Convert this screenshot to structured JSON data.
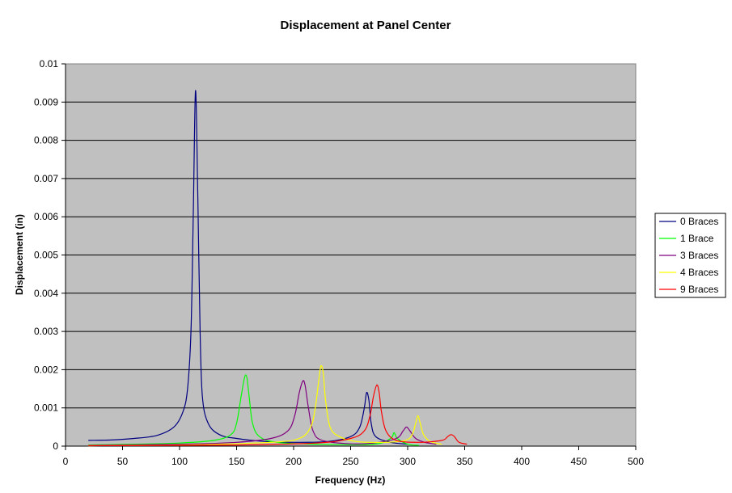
{
  "chart_data": {
    "type": "line",
    "title": "Displacement at Panel Center",
    "xlabel": "Frequency (Hz)",
    "ylabel": "Displacement (in)",
    "xlim": [
      0,
      500
    ],
    "ylim": [
      0,
      0.01
    ],
    "x_ticks": [
      "0",
      "50",
      "100",
      "150",
      "200",
      "250",
      "300",
      "350",
      "400",
      "450",
      "500"
    ],
    "y_ticks": [
      "0",
      "0.001",
      "0.002",
      "0.003",
      "0.004",
      "0.005",
      "0.006",
      "0.007",
      "0.008",
      "0.009",
      "0.01"
    ],
    "grid": "horizontal",
    "plot_background": "#c0c0c0",
    "legend_position": "right",
    "series": [
      {
        "name": "0 Braces",
        "color": "#000080",
        "points": [
          [
            20,
            0.00015
          ],
          [
            40,
            0.00016
          ],
          [
            60,
            0.0002
          ],
          [
            80,
            0.00028
          ],
          [
            95,
            0.0005
          ],
          [
            103,
            0.0009
          ],
          [
            107,
            0.0015
          ],
          [
            110,
            0.003
          ],
          [
            112,
            0.006
          ],
          [
            114,
            0.0093
          ],
          [
            116,
            0.0065
          ],
          [
            118,
            0.003
          ],
          [
            120,
            0.0013
          ],
          [
            125,
            0.0006
          ],
          [
            135,
            0.0003
          ],
          [
            150,
            0.0002
          ],
          [
            175,
            0.00012
          ],
          [
            200,
            0.0001
          ],
          [
            230,
            0.00012
          ],
          [
            250,
            0.00025
          ],
          [
            258,
            0.0005
          ],
          [
            262,
            0.001
          ],
          [
            264,
            0.0014
          ],
          [
            266,
            0.0012
          ],
          [
            268,
            0.0006
          ],
          [
            272,
            0.00025
          ],
          [
            285,
            0.0001
          ],
          [
            300,
            5e-05
          ]
        ]
      },
      {
        "name": "1 Brace",
        "color": "#00ff00",
        "points": [
          [
            20,
            3e-05
          ],
          [
            60,
            5e-05
          ],
          [
            100,
            8e-05
          ],
          [
            130,
            0.00015
          ],
          [
            145,
            0.0003
          ],
          [
            150,
            0.0006
          ],
          [
            154,
            0.0013
          ],
          [
            157,
            0.0018
          ],
          [
            159,
            0.0018
          ],
          [
            161,
            0.0013
          ],
          [
            164,
            0.0006
          ],
          [
            170,
            0.00025
          ],
          [
            185,
            0.0001
          ],
          [
            220,
            5e-05
          ],
          [
            270,
            5e-05
          ],
          [
            285,
            0.0002
          ],
          [
            288,
            0.00035
          ],
          [
            291,
            0.0002
          ],
          [
            300,
            5e-05
          ],
          [
            310,
            2e-05
          ]
        ]
      },
      {
        "name": "3 Braces",
        "color": "#800080",
        "points": [
          [
            20,
            2e-05
          ],
          [
            100,
            5e-05
          ],
          [
            150,
            0.0001
          ],
          [
            180,
            0.0002
          ],
          [
            195,
            0.0004
          ],
          [
            201,
            0.0008
          ],
          [
            205,
            0.0014
          ],
          [
            208,
            0.0017
          ],
          [
            210,
            0.0016
          ],
          [
            213,
            0.001
          ],
          [
            217,
            0.0004
          ],
          [
            225,
            0.00015
          ],
          [
            250,
            6e-05
          ],
          [
            270,
            8e-05
          ],
          [
            290,
            0.0002
          ],
          [
            296,
            0.0004
          ],
          [
            299,
            0.0005
          ],
          [
            302,
            0.0004
          ],
          [
            307,
            0.0002
          ],
          [
            315,
            0.0001
          ],
          [
            325,
            5e-05
          ]
        ]
      },
      {
        "name": "4 Braces",
        "color": "#ffff00",
        "points": [
          [
            20,
            1e-05
          ],
          [
            100,
            3e-05
          ],
          [
            180,
            0.0001
          ],
          [
            205,
            0.0002
          ],
          [
            215,
            0.0005
          ],
          [
            219,
            0.001
          ],
          [
            222,
            0.0017
          ],
          [
            224,
            0.0021
          ],
          [
            226,
            0.0019
          ],
          [
            228,
            0.0012
          ],
          [
            232,
            0.0005
          ],
          [
            240,
            0.00025
          ],
          [
            255,
            0.00012
          ],
          [
            280,
            0.0001
          ],
          [
            298,
            0.00015
          ],
          [
            304,
            0.0003
          ],
          [
            307,
            0.0006
          ],
          [
            309,
            0.0008
          ],
          [
            311,
            0.0006
          ],
          [
            314,
            0.0003
          ],
          [
            320,
            0.00012
          ],
          [
            330,
            5e-05
          ]
        ]
      },
      {
        "name": "9 Braces",
        "color": "#ff0000",
        "points": [
          [
            20,
            1e-05
          ],
          [
            150,
            3e-05
          ],
          [
            220,
            8e-05
          ],
          [
            250,
            0.0002
          ],
          [
            262,
            0.0004
          ],
          [
            267,
            0.0008
          ],
          [
            270,
            0.0013
          ],
          [
            273,
            0.0016
          ],
          [
            275,
            0.0014
          ],
          [
            277,
            0.0009
          ],
          [
            281,
            0.0004
          ],
          [
            290,
            0.00015
          ],
          [
            310,
            0.0001
          ],
          [
            330,
            0.00015
          ],
          [
            335,
            0.00025
          ],
          [
            338,
            0.0003
          ],
          [
            341,
            0.00025
          ],
          [
            345,
            0.0001
          ],
          [
            352,
            5e-05
          ]
        ]
      }
    ]
  }
}
